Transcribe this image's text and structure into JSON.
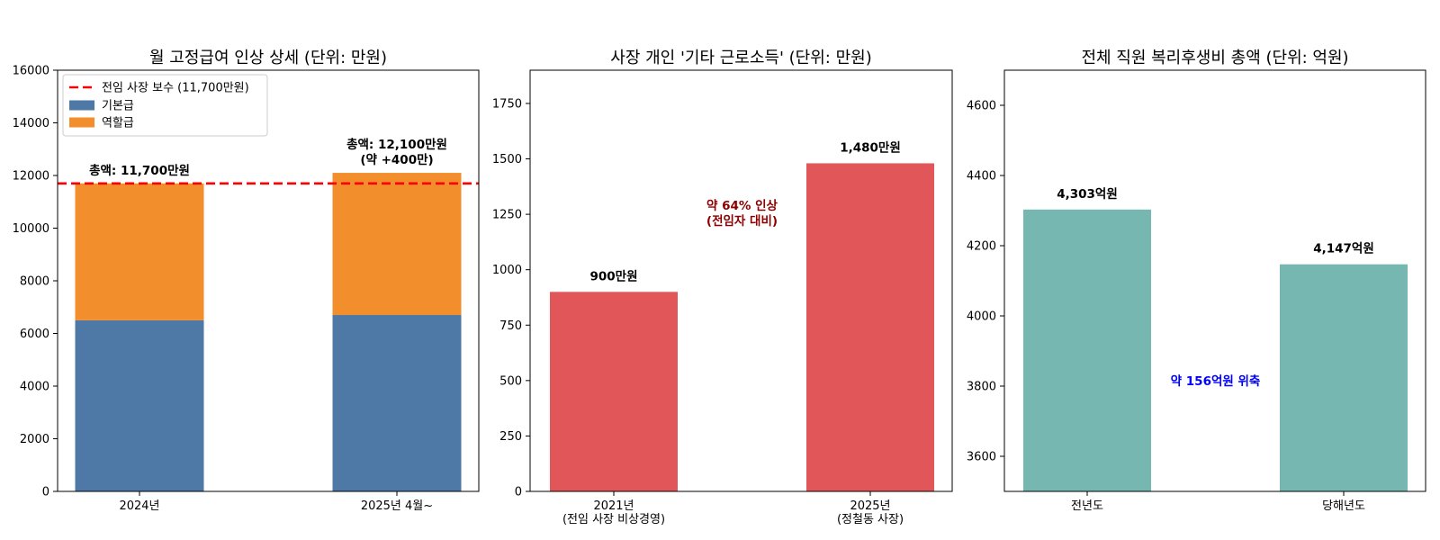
{
  "chart_data": [
    {
      "type": "bar",
      "stacked": true,
      "title": "월 고정급여 인상 상세 (단위: 만원)",
      "xlabel": "",
      "ylabel": "",
      "ylim": [
        0,
        16000
      ],
      "yticks": [
        "0",
        "2000",
        "4000",
        "6000",
        "8000",
        "10000",
        "12000",
        "14000",
        "16000"
      ],
      "categories": [
        "2024년",
        "2025년 4월~"
      ],
      "series": [
        {
          "name": "기본급",
          "values": [
            6500,
            6700
          ],
          "color": "#4e79a7"
        },
        {
          "name": "역할급",
          "values": [
            5200,
            5400
          ],
          "color": "#f28e2b"
        }
      ],
      "reference_line": {
        "name": "전임 사장 보수 (11,700만원)",
        "value": 11700,
        "color": "#ff0000",
        "style": "dashed"
      },
      "data_labels": [
        {
          "lines": [
            "총액: 11,700만원"
          ]
        },
        {
          "lines": [
            "총액: 12,100만원",
            "(약 +400만)"
          ]
        }
      ],
      "legend": "top-left",
      "grid": false
    },
    {
      "type": "bar",
      "title": "사장 개인 '기타 근로소득' (단위: 만원)",
      "xlabel": "",
      "ylabel": "",
      "ylim": [
        0,
        1900
      ],
      "yticks": [
        "0",
        "250",
        "500",
        "750",
        "1000",
        "1250",
        "1500",
        "1750"
      ],
      "categories": [
        [
          "2021년",
          "(전임 사장 비상경영)"
        ],
        [
          "2025년",
          "(정철동 사장)"
        ]
      ],
      "values": [
        900,
        1480
      ],
      "color": "#e15759",
      "data_labels": [
        "900만원",
        "1,480만원"
      ],
      "annotation": {
        "lines": [
          "약 64% 인상",
          "(전임자 대비)"
        ],
        "color": "#8b0000"
      },
      "grid": false
    },
    {
      "type": "bar",
      "title": "전체 직원 복리후생비 총액 (단위: 억원)",
      "xlabel": "",
      "ylabel": "",
      "ylim": [
        3500,
        4700
      ],
      "yticks": [
        "3600",
        "3800",
        "4000",
        "4200",
        "4400",
        "4600"
      ],
      "categories": [
        "전년도",
        "당해년도"
      ],
      "values": [
        4303,
        4147
      ],
      "color": "#76b7b2",
      "data_labels": [
        "4,303억원",
        "4,147억원"
      ],
      "annotation": {
        "lines": [
          "약 156억원 위축"
        ],
        "color": "#0000ff"
      },
      "grid": false
    }
  ]
}
